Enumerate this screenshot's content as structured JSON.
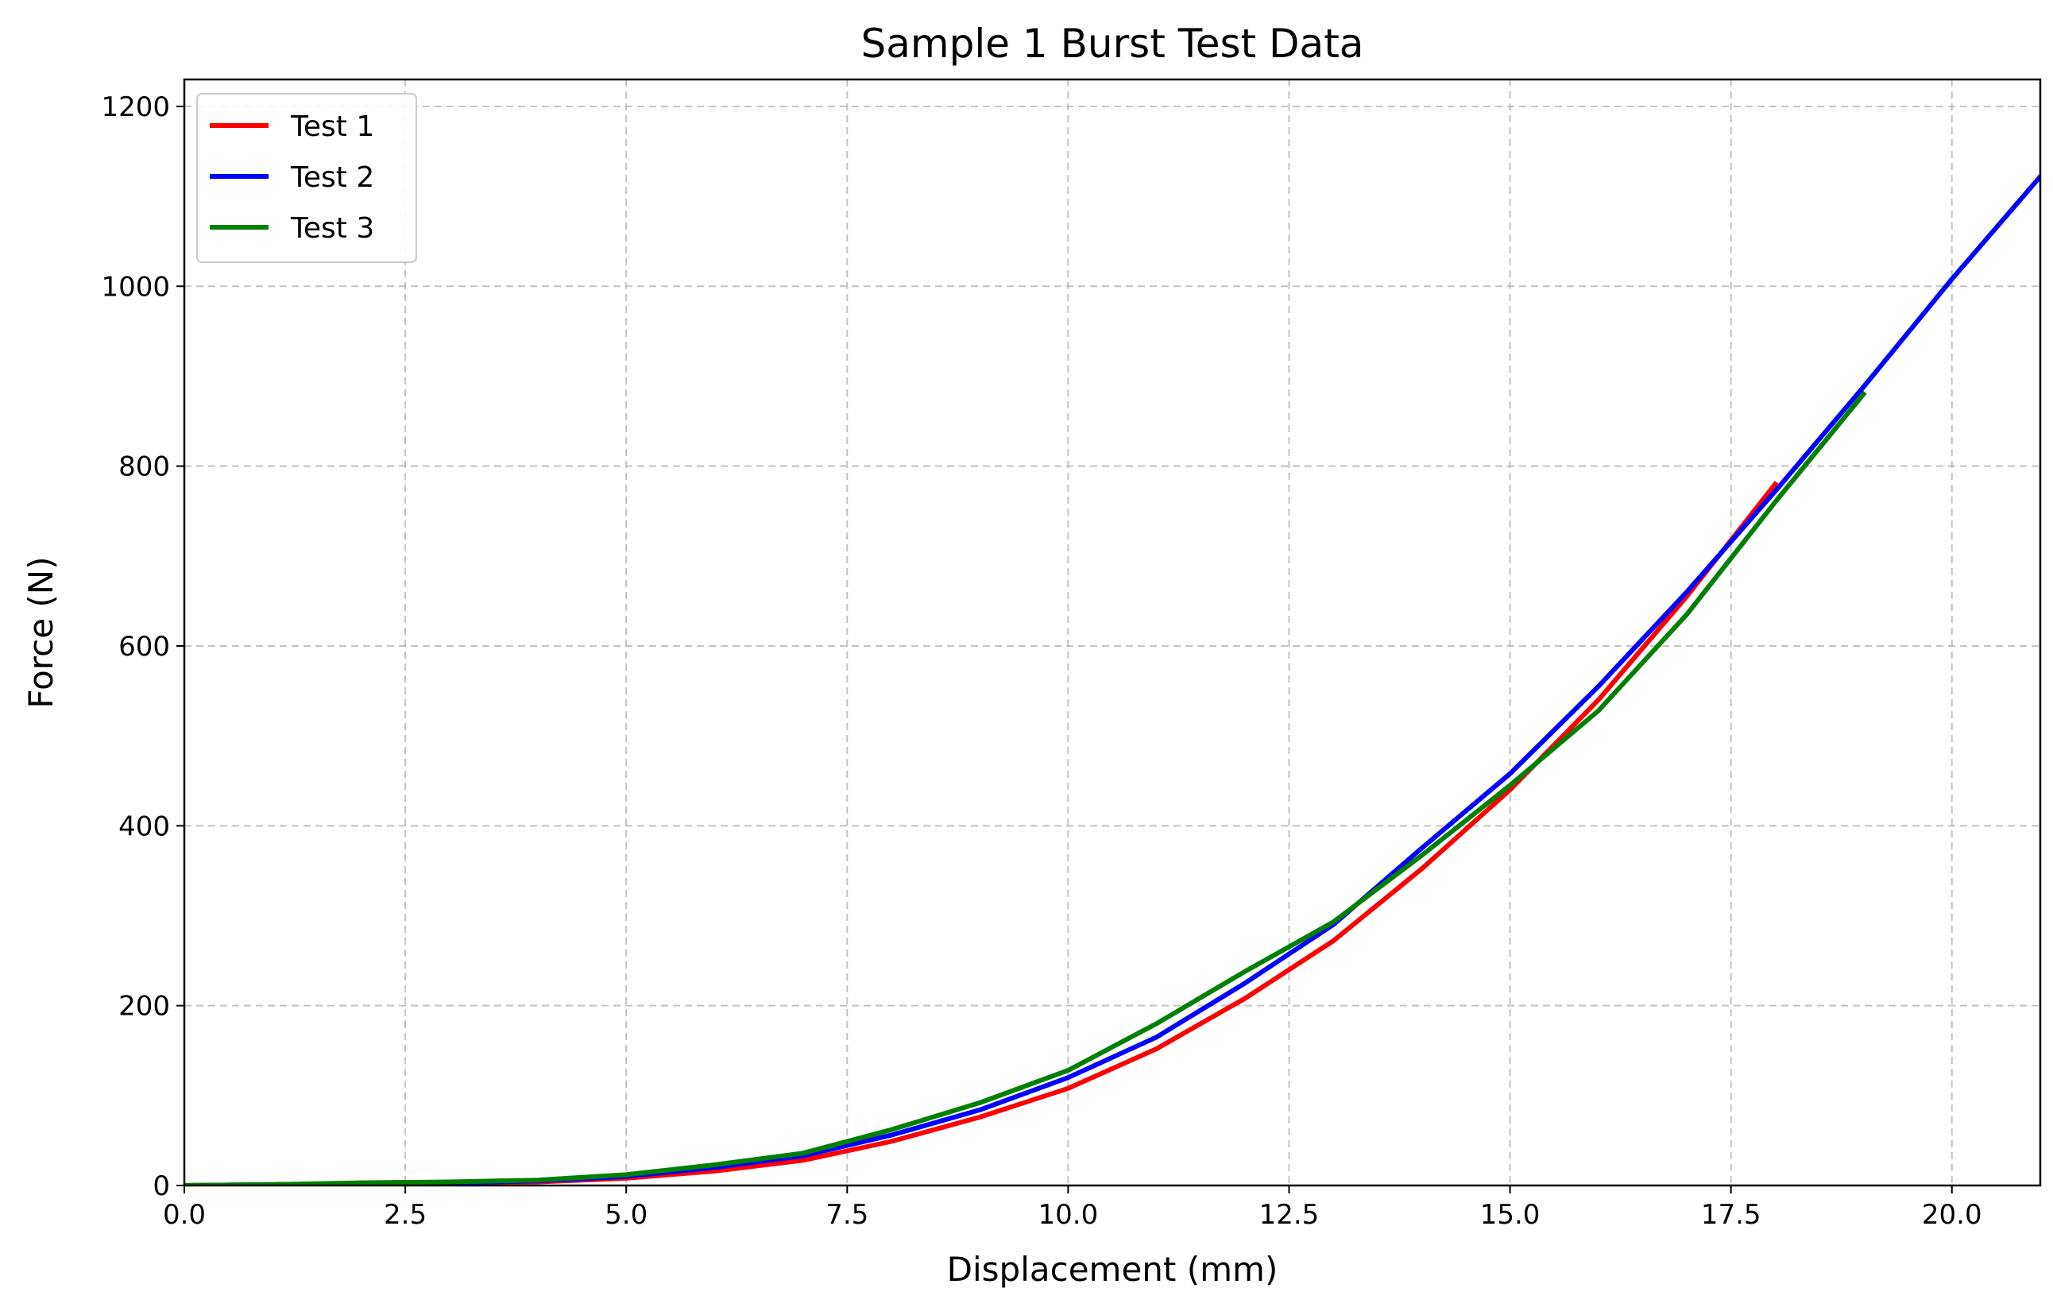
{
  "chart_data": {
    "type": "line",
    "title": "Sample 1 Burst Test Data",
    "xlabel": "Displacement (mm)",
    "ylabel": "Force (N)",
    "xlim": [
      0,
      21
    ],
    "ylim": [
      0,
      1230
    ],
    "xticks": [
      "0.0",
      "2.5",
      "5.0",
      "7.5",
      "10.0",
      "12.5",
      "15.0",
      "17.5",
      "20.0"
    ],
    "yticks": [
      "0",
      "200",
      "400",
      "600",
      "800",
      "1000",
      "1200"
    ],
    "grid": true,
    "legend_position": "top-left",
    "series": [
      {
        "name": "Test 1",
        "color": "#ff0000",
        "x": [
          0,
          1,
          2,
          3,
          4,
          5,
          6,
          7,
          8,
          9,
          10,
          11,
          12,
          13,
          14,
          15,
          16,
          17,
          18
        ],
        "y": [
          0,
          1,
          2,
          3,
          4,
          8,
          16,
          28,
          49,
          76,
          108,
          152,
          208,
          272,
          352,
          440,
          540,
          655,
          780
        ]
      },
      {
        "name": "Test 2",
        "color": "#0000ff",
        "x": [
          0,
          1,
          2,
          3,
          4,
          5,
          6,
          7,
          8,
          9,
          10,
          11,
          12,
          13,
          14,
          15,
          16,
          17,
          18,
          19,
          20,
          21
        ],
        "y": [
          0,
          1,
          2,
          3,
          5,
          10,
          20,
          33,
          56,
          84,
          120,
          165,
          225,
          290,
          375,
          458,
          555,
          660,
          772,
          888,
          1008,
          1122
        ]
      },
      {
        "name": "Test 3",
        "color": "#008000",
        "x": [
          0,
          1,
          2,
          3,
          4,
          5,
          6,
          7,
          8,
          9,
          10,
          11,
          12,
          13,
          14,
          15,
          16,
          17,
          18,
          19
        ],
        "y": [
          0,
          1,
          3,
          4,
          6,
          12,
          23,
          36,
          62,
          92,
          128,
          180,
          238,
          293,
          367,
          445,
          528,
          635,
          760,
          880
        ]
      }
    ]
  }
}
